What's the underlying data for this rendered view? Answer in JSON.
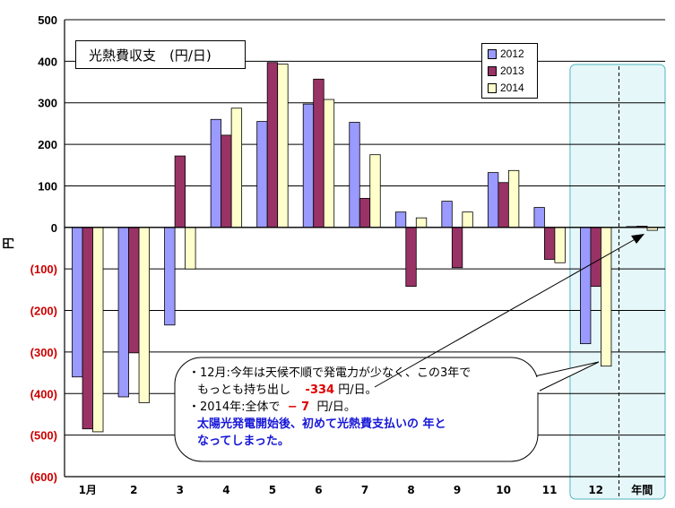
{
  "title": "光熱費収支　(円/日)",
  "y_axis_label": "円",
  "chart_data": {
    "type": "bar",
    "categories": [
      "1月",
      "2",
      "3",
      "4",
      "5",
      "6",
      "7",
      "8",
      "9",
      "10",
      "11",
      "12",
      "年間"
    ],
    "series": [
      {
        "name": "2012",
        "color": "#9a9aff",
        "values": [
          -360,
          -408,
          -235,
          260,
          255,
          297,
          253,
          37,
          63,
          132,
          48,
          -280,
          2
        ]
      },
      {
        "name": "2013",
        "color": "#993366",
        "values": [
          -485,
          -302,
          172,
          222,
          397,
          357,
          70,
          -142,
          -97,
          108,
          -77,
          -142,
          3
        ]
      },
      {
        "name": "2014",
        "color": "#ffffcc",
        "values": [
          -492,
          -422,
          -100,
          287,
          393,
          308,
          175,
          23,
          37,
          137,
          -85,
          -334,
          -7
        ]
      }
    ],
    "ylim": [
      -600,
      500
    ],
    "yticks": [
      "500",
      "400",
      "300",
      "200",
      "100",
      "0",
      "(100)",
      "(200)",
      "(300)",
      "(400)",
      "(500)",
      "(600)"
    ],
    "ytick_colors": {
      "positive": "#000000",
      "negative": "#cc0000"
    },
    "grid": true,
    "legend_position": "top-right"
  },
  "note": {
    "line1_prefix": "・12月:",
    "line1_text": "今年は天候不順で発電力が少なく、この3年で",
    "line2_text": "もっとも持ち出し",
    "line2_value": "-334",
    "line2_unit": "円/日。",
    "line3_prefix": "・2014年:全体で",
    "line3_value": "− 7",
    "line3_unit": "円/日。",
    "line4_text": "太陽光発電開始後、初めて光熱費支払いの 年と",
    "line5_text": "なってしまった。"
  }
}
